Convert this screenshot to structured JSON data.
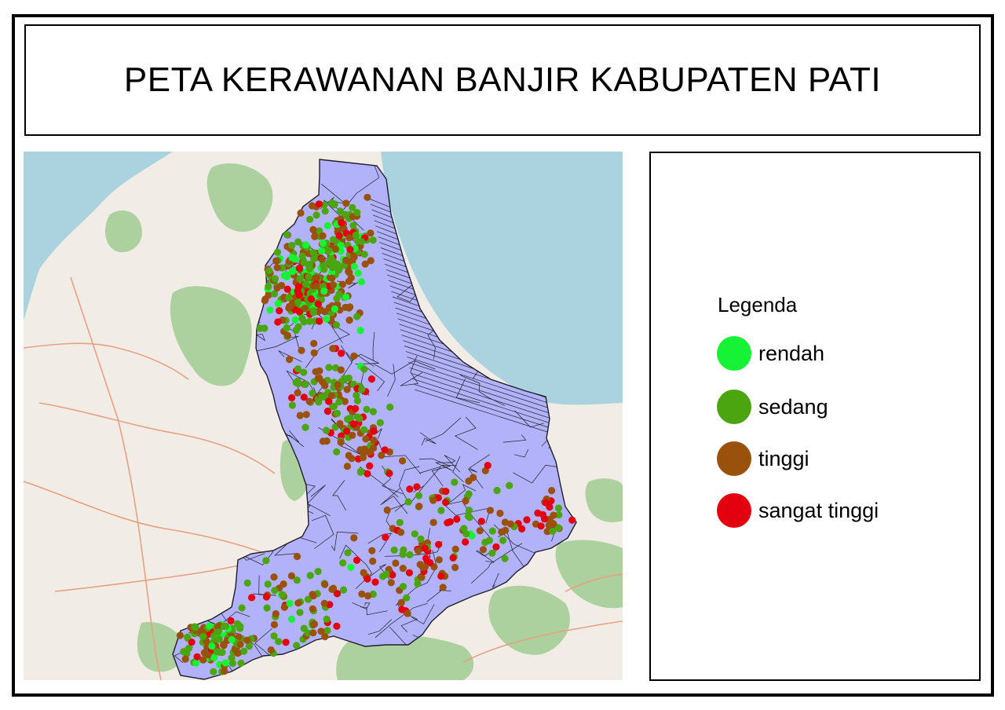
{
  "title": "PETA KERAWANAN BANJIR KABUPATEN PATI",
  "legend": {
    "title": "Legenda",
    "items": [
      {
        "label": "rendah",
        "color": "#16f235"
      },
      {
        "label": "sedang",
        "color": "#4aa510"
      },
      {
        "label": "tinggi",
        "color": "#99510b"
      },
      {
        "label": "sangat tinggi",
        "color": "#e3000f"
      }
    ]
  },
  "colors": {
    "sea": "#aad3df",
    "land": "#f1ede6",
    "forest": "#add19e",
    "region_fill": "#b2b2fa",
    "region_border": "#1e1e2a",
    "road": "#e8a080"
  }
}
